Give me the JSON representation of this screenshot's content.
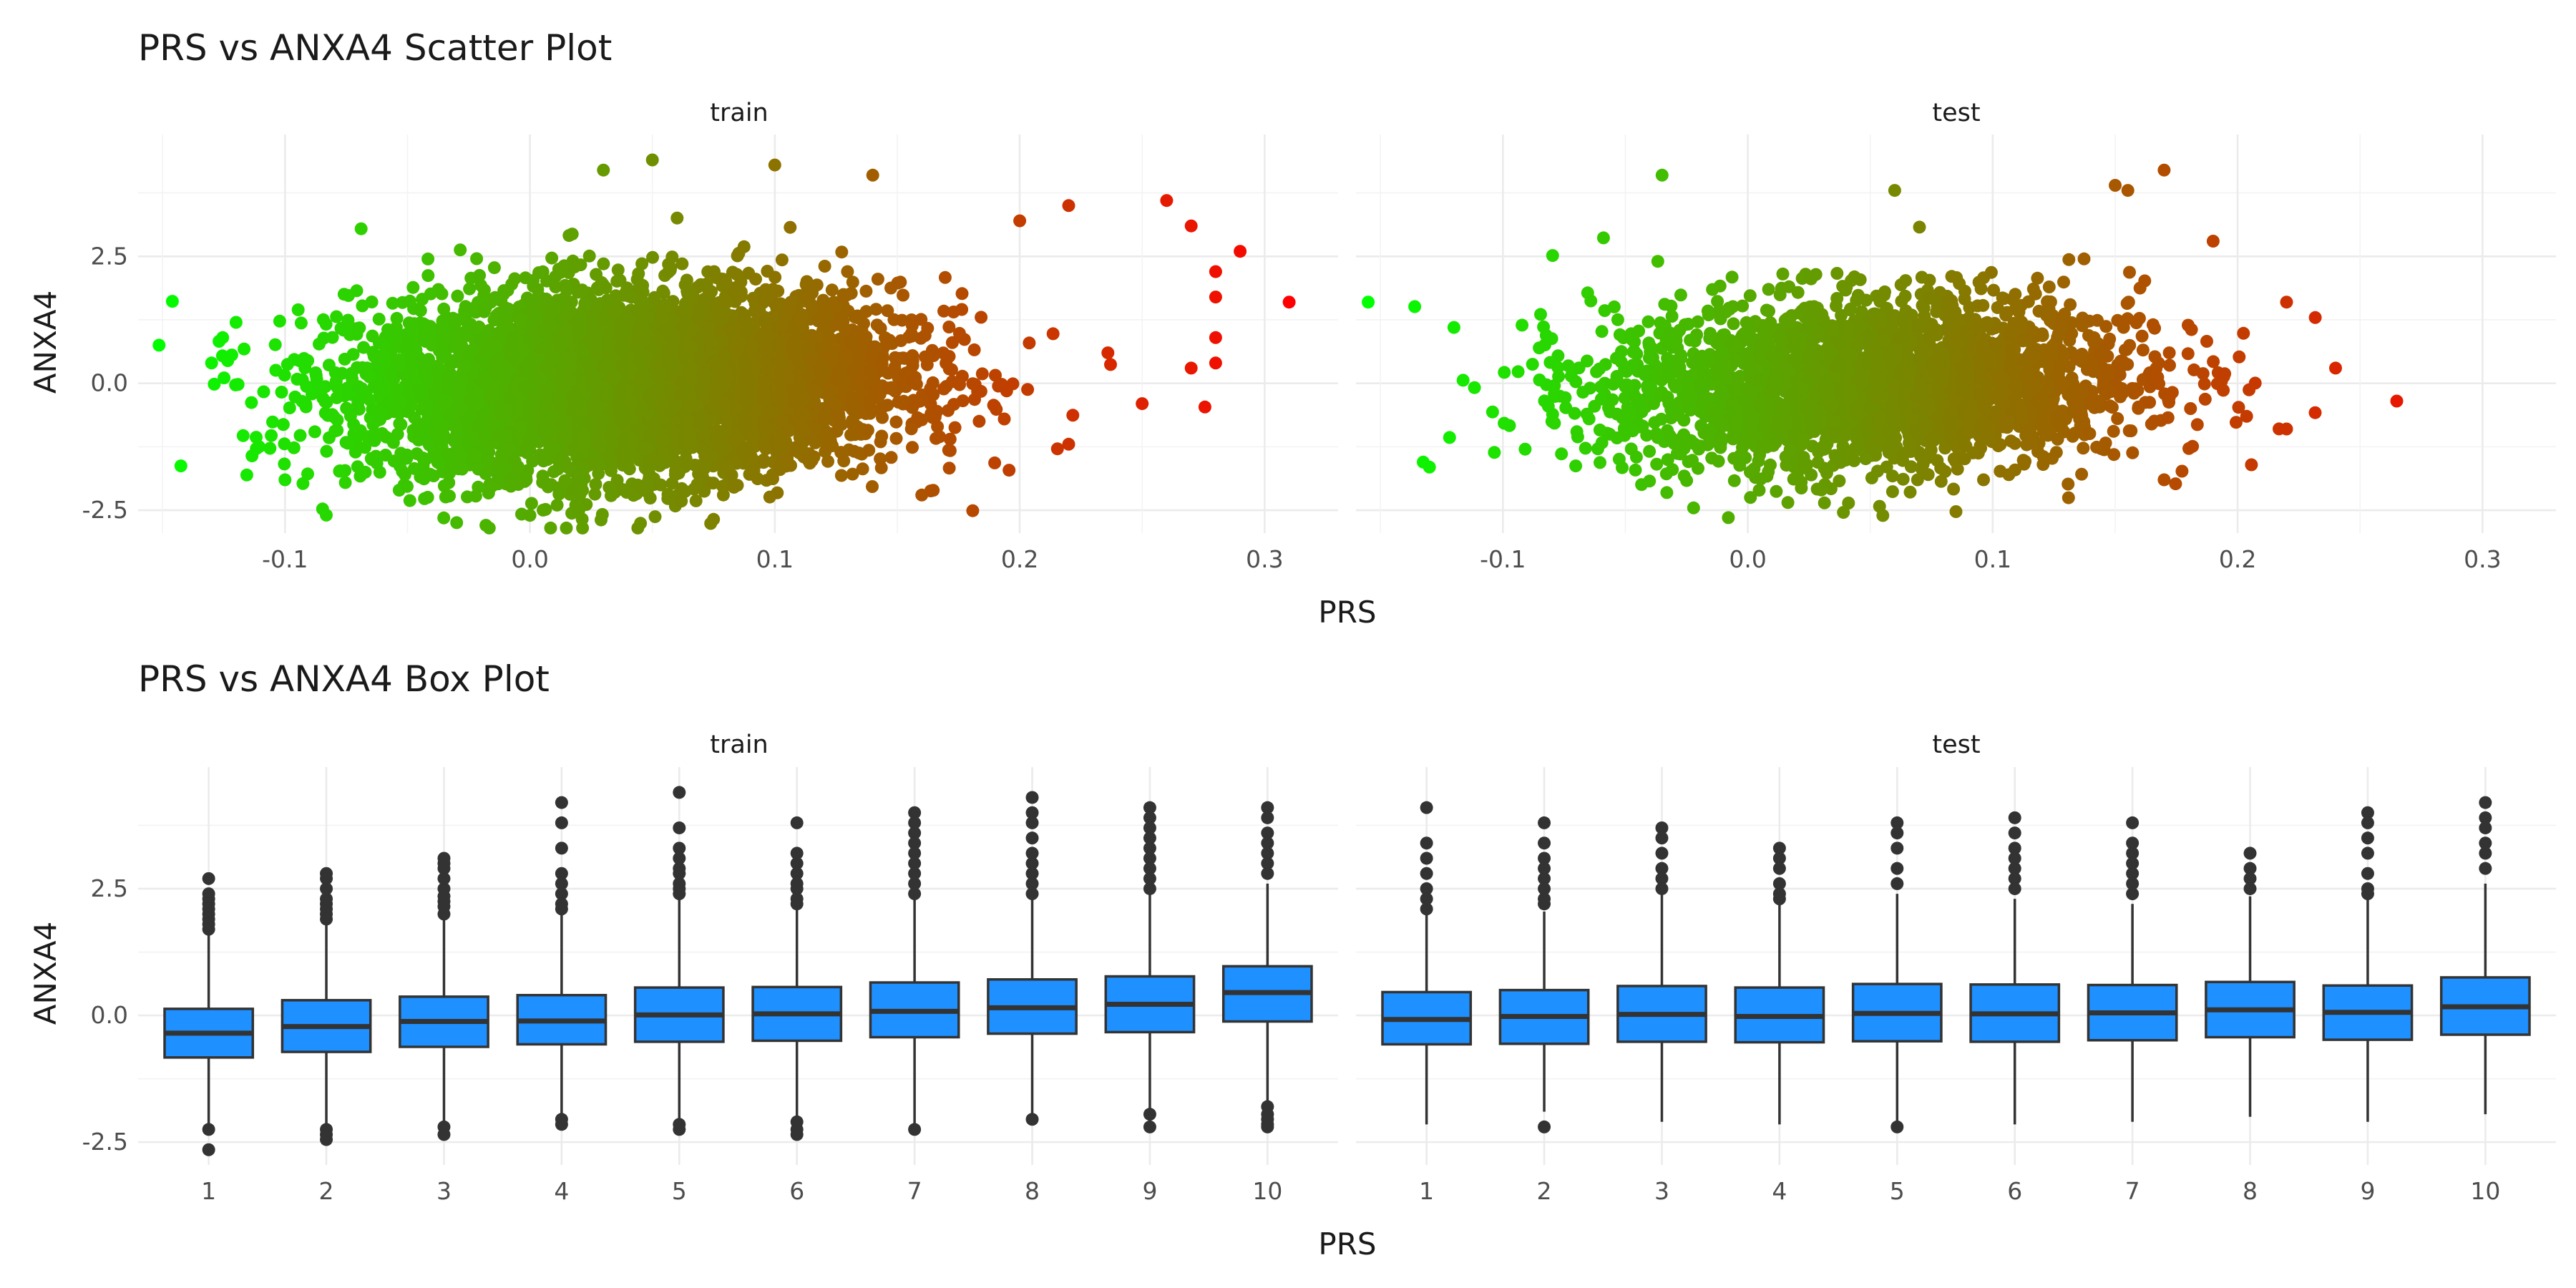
{
  "chart_data": [
    {
      "type": "scatter",
      "title": "PRS vs ANXA4 Scatter Plot",
      "xlabel": "PRS",
      "ylabel": "ANXA4",
      "facets": [
        "train",
        "test"
      ],
      "xlim": [
        -0.16,
        0.33
      ],
      "ylim": [
        -2.95,
        4.9
      ],
      "x_ticks": [
        -0.1,
        0.0,
        0.1,
        0.2,
        0.3
      ],
      "x_tick_labels": [
        "-0.1",
        "0.0",
        "0.1",
        "0.2",
        "0.3"
      ],
      "y_ticks": [
        -2.5,
        0.0,
        2.5
      ],
      "y_tick_labels": [
        "-2.5",
        "0.0",
        "2.5"
      ],
      "color_by": "PRS",
      "color_low": "#00ff00",
      "color_high": "#ff0000",
      "grid": true,
      "series": [
        {
          "facet": "train",
          "summary": {
            "x_mean": 0.04,
            "x_sd": 0.055,
            "y_mean": 0.0,
            "y_sd": 0.9
          },
          "points": [
            {
              "x": -0.13,
              "y": 0.4
            },
            {
              "x": -0.12,
              "y": 1.2
            },
            {
              "x": -0.1,
              "y": -1.9
            },
            {
              "x": 0.0,
              "y": -2.6
            },
            {
              "x": 0.05,
              "y": 4.4
            },
            {
              "x": 0.03,
              "y": 4.2
            },
            {
              "x": 0.1,
              "y": 4.3
            },
            {
              "x": 0.14,
              "y": 4.1
            },
            {
              "x": 0.2,
              "y": 3.2
            },
            {
              "x": 0.22,
              "y": 3.5
            },
            {
              "x": 0.26,
              "y": 3.6
            },
            {
              "x": 0.27,
              "y": 3.1
            },
            {
              "x": 0.28,
              "y": 2.2
            },
            {
              "x": 0.29,
              "y": 2.6
            },
            {
              "x": 0.28,
              "y": 1.7
            },
            {
              "x": 0.31,
              "y": 1.6
            },
            {
              "x": 0.28,
              "y": 0.9
            },
            {
              "x": 0.28,
              "y": 0.4
            },
            {
              "x": 0.27,
              "y": 0.3
            },
            {
              "x": 0.25,
              "y": -0.4
            },
            {
              "x": 0.22,
              "y": -1.2
            },
            {
              "x": 0.16,
              "y": -2.2
            },
            {
              "x": 0.02,
              "y": -2.5
            }
          ]
        },
        {
          "facet": "test",
          "summary": {
            "x_mean": 0.05,
            "x_sd": 0.055,
            "y_mean": 0.0,
            "y_sd": 0.85
          },
          "points": [
            {
              "x": -0.155,
              "y": 1.6
            },
            {
              "x": -0.13,
              "y": -1.65
            },
            {
              "x": -0.12,
              "y": 1.1
            },
            {
              "x": -0.035,
              "y": 4.1
            },
            {
              "x": 0.17,
              "y": 4.2
            },
            {
              "x": 0.15,
              "y": 3.9
            },
            {
              "x": 0.06,
              "y": 3.8
            },
            {
              "x": 0.19,
              "y": 2.8
            },
            {
              "x": 0.22,
              "y": 1.6
            },
            {
              "x": 0.24,
              "y": 0.3
            },
            {
              "x": 0.265,
              "y": -0.35
            },
            {
              "x": 0.22,
              "y": -0.9
            },
            {
              "x": 0.17,
              "y": -1.9
            },
            {
              "x": 0.03,
              "y": -2.1
            }
          ]
        }
      ]
    },
    {
      "type": "box",
      "title": "PRS vs ANXA4 Box Plot",
      "xlabel": "PRS",
      "ylabel": "ANXA4",
      "facets": [
        "train",
        "test"
      ],
      "categories": [
        "1",
        "2",
        "3",
        "4",
        "5",
        "6",
        "7",
        "8",
        "9",
        "10"
      ],
      "ylim": [
        -2.95,
        4.9
      ],
      "y_ticks": [
        -2.5,
        0.0,
        2.5
      ],
      "y_tick_labels": [
        "-2.5",
        "0.0",
        "2.5"
      ],
      "box_fill": "#1e90ff",
      "box_line": "#333333",
      "grid": true,
      "series": [
        {
          "facet": "train",
          "boxes": [
            {
              "q1": -0.83,
              "median": -0.35,
              "q3": 0.13,
              "lo": -2.2,
              "hi": 1.6,
              "outliers": [
                2.7,
                2.4,
                2.3,
                2.2,
                2.1,
                2.0,
                1.9,
                1.8,
                1.7,
                -2.25,
                -2.65
              ]
            },
            {
              "q1": -0.72,
              "median": -0.22,
              "q3": 0.3,
              "lo": -2.2,
              "hi": 1.8,
              "outliers": [
                2.8,
                2.7,
                2.5,
                2.3,
                2.2,
                2.1,
                2.0,
                1.9,
                -2.25,
                -2.35,
                -2.45
              ]
            },
            {
              "q1": -0.62,
              "median": -0.12,
              "q3": 0.37,
              "lo": -2.15,
              "hi": 1.9,
              "outliers": [
                3.1,
                3.0,
                2.9,
                2.7,
                2.5,
                2.35,
                2.25,
                2.15,
                2.0,
                -2.2,
                -2.35
              ]
            },
            {
              "q1": -0.57,
              "median": -0.11,
              "q3": 0.4,
              "lo": -2.0,
              "hi": 2.0,
              "outliers": [
                4.2,
                3.8,
                3.3,
                2.8,
                2.6,
                2.4,
                2.2,
                2.1,
                -2.05,
                -2.15
              ]
            },
            {
              "q1": -0.52,
              "median": 0.01,
              "q3": 0.55,
              "lo": -2.05,
              "hi": 2.3,
              "outliers": [
                4.4,
                3.7,
                3.3,
                3.1,
                2.9,
                2.8,
                2.6,
                2.5,
                2.4,
                -2.15,
                -2.25
              ]
            },
            {
              "q1": -0.5,
              "median": 0.03,
              "q3": 0.56,
              "lo": -2.0,
              "hi": 2.15,
              "outliers": [
                3.8,
                3.2,
                3.0,
                2.8,
                2.6,
                2.5,
                2.3,
                2.2,
                -2.1,
                -2.25,
                -2.35
              ]
            },
            {
              "q1": -0.43,
              "median": 0.08,
              "q3": 0.65,
              "lo": -2.2,
              "hi": 2.3,
              "outliers": [
                4.0,
                3.8,
                3.6,
                3.4,
                3.2,
                3.0,
                2.8,
                2.6,
                2.4,
                -2.25
              ]
            },
            {
              "q1": -0.36,
              "median": 0.15,
              "q3": 0.71,
              "lo": -2.0,
              "hi": 2.3,
              "outliers": [
                4.3,
                4.0,
                3.8,
                3.5,
                3.2,
                3.0,
                2.8,
                2.6,
                2.4,
                -2.05
              ]
            },
            {
              "q1": -0.33,
              "median": 0.22,
              "q3": 0.77,
              "lo": -1.9,
              "hi": 2.4,
              "outliers": [
                4.1,
                3.9,
                3.7,
                3.5,
                3.3,
                3.1,
                2.9,
                2.7,
                2.5,
                -1.95,
                -2.2
              ]
            },
            {
              "q1": -0.12,
              "median": 0.45,
              "q3": 0.97,
              "lo": -1.7,
              "hi": 2.6,
              "outliers": [
                4.1,
                3.9,
                3.6,
                3.4,
                3.2,
                3.0,
                2.8,
                -1.8,
                -1.95,
                -2.05,
                -2.15,
                -2.2
              ]
            }
          ]
        },
        {
          "facet": "test",
          "boxes": [
            {
              "q1": -0.57,
              "median": -0.08,
              "q3": 0.46,
              "lo": -2.15,
              "hi": 2.0,
              "outliers": [
                4.1,
                3.4,
                3.1,
                2.8,
                2.5,
                2.3,
                2.1
              ]
            },
            {
              "q1": -0.56,
              "median": -0.02,
              "q3": 0.5,
              "lo": -1.9,
              "hi": 2.05,
              "outliers": [
                3.8,
                3.4,
                3.1,
                2.9,
                2.7,
                2.5,
                2.3,
                2.2,
                -2.2
              ]
            },
            {
              "q1": -0.52,
              "median": 0.02,
              "q3": 0.58,
              "lo": -2.1,
              "hi": 2.4,
              "outliers": [
                3.7,
                3.5,
                3.2,
                2.9,
                2.7,
                2.5
              ]
            },
            {
              "q1": -0.53,
              "median": -0.02,
              "q3": 0.55,
              "lo": -2.15,
              "hi": 2.2,
              "outliers": [
                3.3,
                3.1,
                2.9,
                2.6,
                2.4,
                2.3
              ]
            },
            {
              "q1": -0.51,
              "median": 0.04,
              "q3": 0.62,
              "lo": -2.1,
              "hi": 2.4,
              "outliers": [
                3.8,
                3.6,
                3.3,
                2.9,
                2.6,
                -2.2
              ]
            },
            {
              "q1": -0.52,
              "median": 0.03,
              "q3": 0.61,
              "lo": -2.15,
              "hi": 2.3,
              "outliers": [
                3.9,
                3.6,
                3.3,
                3.1,
                2.9,
                2.7,
                2.5
              ]
            },
            {
              "q1": -0.49,
              "median": 0.05,
              "q3": 0.6,
              "lo": -2.1,
              "hi": 2.2,
              "outliers": [
                3.8,
                3.4,
                3.2,
                3.0,
                2.8,
                2.6,
                2.4
              ]
            },
            {
              "q1": -0.43,
              "median": 0.11,
              "q3": 0.66,
              "lo": -2.0,
              "hi": 2.35,
              "outliers": [
                3.2,
                2.9,
                2.7,
                2.5
              ]
            },
            {
              "q1": -0.48,
              "median": 0.06,
              "q3": 0.59,
              "lo": -2.1,
              "hi": 2.3,
              "outliers": [
                4.0,
                3.8,
                3.5,
                3.2,
                2.8,
                2.5,
                2.4
              ]
            },
            {
              "q1": -0.38,
              "median": 0.17,
              "q3": 0.75,
              "lo": -1.95,
              "hi": 2.6,
              "outliers": [
                4.2,
                3.9,
                3.7,
                3.4,
                3.2,
                2.9
              ]
            }
          ]
        }
      ]
    }
  ]
}
